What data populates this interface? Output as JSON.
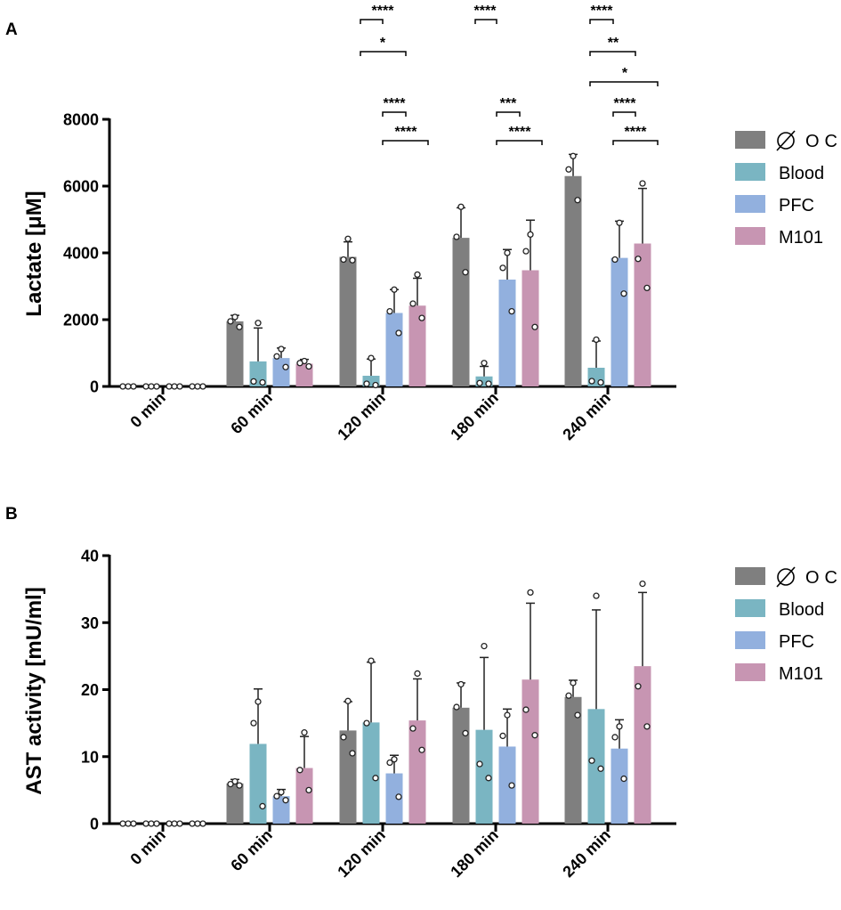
{
  "chart_data": [
    {
      "panel": "A",
      "type": "bar",
      "ylabel": "Lactate [μM]",
      "xlabel": "",
      "ylim": [
        0,
        8000
      ],
      "yticks": [
        "0",
        "2000",
        "4000",
        "6000",
        "8000"
      ],
      "ytick_values": [
        0,
        2000,
        4000,
        6000,
        8000
      ],
      "categories": [
        "0 min",
        "60 min",
        "120 min",
        "180 min",
        "240 min"
      ],
      "series": [
        {
          "name": "∅ OC",
          "color": "#7f7f7f",
          "values": [
            0,
            1950,
            3880,
            4450,
            6300
          ],
          "errors": [
            0,
            180,
            450,
            900,
            650
          ],
          "points": [
            [
              0,
              0,
              0
            ],
            [
              2080,
              1950,
              1780
            ],
            [
              4420,
              3800,
              3780
            ],
            [
              5380,
              4480,
              3420
            ],
            [
              6900,
              6500,
              5580
            ]
          ]
        },
        {
          "name": "Blood",
          "color": "#7ab5c2",
          "values": [
            0,
            750,
            320,
            300,
            560
          ],
          "errors": [
            0,
            1000,
            500,
            300,
            800
          ],
          "points": [
            [
              0,
              0,
              0
            ],
            [
              1900,
              150,
              120
            ],
            [
              850,
              80,
              40
            ],
            [
              700,
              100,
              80
            ],
            [
              1400,
              160,
              120
            ]
          ]
        },
        {
          "name": "PFC",
          "color": "#92b0de",
          "values": [
            0,
            850,
            2200,
            3200,
            3850
          ],
          "errors": [
            0,
            300,
            700,
            900,
            1100
          ],
          "points": [
            [
              0,
              0,
              0
            ],
            [
              1120,
              900,
              580
            ],
            [
              2900,
              2250,
              1600
            ],
            [
              4000,
              3550,
              2250
            ],
            [
              4900,
              3800,
              2780
            ]
          ]
        },
        {
          "name": "M101",
          "color": "#c795b2",
          "values": [
            0,
            680,
            2420,
            3480,
            4280
          ],
          "errors": [
            0,
            130,
            820,
            1500,
            1650
          ],
          "points": [
            [
              0,
              0,
              0
            ],
            [
              760,
              700,
              600
            ],
            [
              3350,
              2480,
              2050
            ],
            [
              4550,
              4050,
              1780
            ],
            [
              6080,
              3820,
              2950
            ]
          ]
        }
      ],
      "significance": [
        {
          "label": "****",
          "from": "∅ OC",
          "to": "Blood",
          "category": "120 min"
        },
        {
          "label": "*",
          "from": "∅ OC",
          "to": "PFC",
          "category": "120 min"
        },
        {
          "label": "****",
          "from": "Blood",
          "to": "PFC",
          "category": "120 min"
        },
        {
          "label": "****",
          "from": "Blood",
          "to": "M101",
          "category": "120 min"
        },
        {
          "label": "****",
          "from": "∅ OC",
          "to": "Blood",
          "category": "180 min"
        },
        {
          "label": "***",
          "from": "Blood",
          "to": "PFC",
          "category": "180 min"
        },
        {
          "label": "****",
          "from": "Blood",
          "to": "M101",
          "category": "180 min"
        },
        {
          "label": "****",
          "from": "∅ OC",
          "to": "Blood",
          "category": "240 min"
        },
        {
          "label": "**",
          "from": "∅ OC",
          "to": "PFC",
          "category": "240 min"
        },
        {
          "label": "*",
          "from": "∅ OC",
          "to": "M101",
          "category": "240 min"
        },
        {
          "label": "****",
          "from": "Blood",
          "to": "PFC",
          "category": "240 min"
        },
        {
          "label": "****",
          "from": "Blood",
          "to": "M101",
          "category": "240 min"
        }
      ]
    },
    {
      "panel": "B",
      "type": "bar",
      "ylabel": "AST activity [mU/ml]",
      "xlabel": "",
      "ylim": [
        0,
        40
      ],
      "yticks": [
        "0",
        "10",
        "20",
        "30",
        "40"
      ],
      "ytick_values": [
        0,
        10,
        20,
        30,
        40
      ],
      "categories": [
        "0 min",
        "60 min",
        "120 min",
        "180 min",
        "240 min"
      ],
      "series": [
        {
          "name": "∅ OC",
          "color": "#7f7f7f",
          "values": [
            0,
            6,
            13.9,
            17.3,
            18.9
          ],
          "errors": [
            0,
            0.6,
            4.3,
            3.7,
            2.5
          ],
          "points": [
            [
              0,
              0,
              0
            ],
            [
              6.3,
              5.9,
              5.7
            ],
            [
              18.3,
              12.9,
              10.5
            ],
            [
              20.8,
              17.4,
              13.5
            ],
            [
              21,
              19.1,
              16.2
            ]
          ]
        },
        {
          "name": "Blood",
          "color": "#7ab5c2",
          "values": [
            0,
            11.9,
            15.1,
            14,
            17.1
          ],
          "errors": [
            0,
            8.2,
            9,
            10.8,
            14.8
          ],
          "points": [
            [
              0,
              0,
              0
            ],
            [
              18.2,
              15,
              2.6
            ],
            [
              24.3,
              15,
              6.8
            ],
            [
              26.5,
              8.9,
              6.8
            ],
            [
              34,
              9.4,
              8.2
            ]
          ]
        },
        {
          "name": "PFC",
          "color": "#92b0de",
          "values": [
            0,
            4.1,
            7.5,
            11.5,
            11.2
          ],
          "errors": [
            0,
            1,
            2.7,
            5.6,
            4.3
          ],
          "points": [
            [
              0,
              0,
              0
            ],
            [
              4.7,
              4.1,
              3.5
            ],
            [
              9.6,
              9.1,
              4
            ],
            [
              16.2,
              13.1,
              5.7
            ],
            [
              14.5,
              12.9,
              6.7
            ]
          ]
        },
        {
          "name": "M101",
          "color": "#c795b2",
          "values": [
            0,
            8.3,
            15.4,
            21.5,
            23.5
          ],
          "errors": [
            0,
            4.7,
            6.2,
            11.4,
            11
          ]
        },
        {
          "name": "_pts_M101",
          "hidden": true,
          "values": [
            0,
            0,
            0,
            0,
            0
          ],
          "errors": [
            0,
            0,
            0,
            0,
            0
          ],
          "points": [
            [
              0,
              0,
              0
            ],
            [
              13.6,
              8,
              5
            ],
            [
              22.4,
              14.2,
              11
            ],
            [
              34.5,
              17,
              13.2
            ],
            [
              35.8,
              20.5,
              14.5
            ]
          ]
        }
      ]
    }
  ],
  "panels": {
    "a_label": "A",
    "b_label": "B"
  },
  "legend": {
    "items": [
      "∅ OC",
      "Blood",
      "PFC",
      "M101"
    ]
  }
}
